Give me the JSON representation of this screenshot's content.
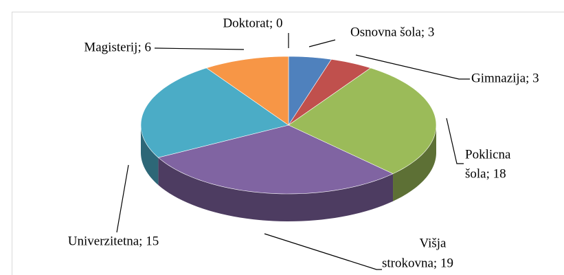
{
  "chart_data": {
    "type": "pie3d",
    "labels": [
      [
        "Doktorat; 0"
      ],
      [
        "Osnovna šola; 3"
      ],
      [
        "Gimnazija; 3"
      ],
      [
        "Poklicna",
        "šola; 18"
      ],
      [
        "Višja",
        "strokovna; 19"
      ],
      [
        "Univerzitetna; 15"
      ],
      [
        "Magisterij; 6"
      ]
    ],
    "values": [
      0,
      3,
      3,
      18,
      19,
      15,
      6
    ],
    "colors": [
      "#7f7f7f",
      "#4f81bd",
      "#c0504d",
      "#9bbb59",
      "#8064a2",
      "#4bacc6",
      "#f79646"
    ]
  }
}
